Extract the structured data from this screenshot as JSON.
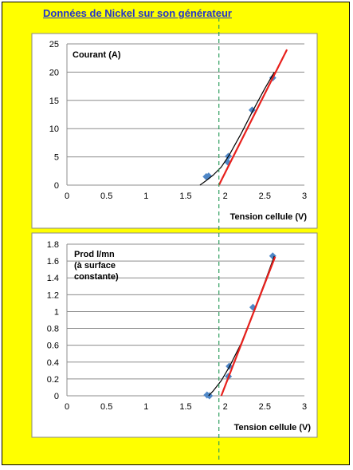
{
  "title": "Données de Nickel sur son générateur",
  "chart_data": [
    {
      "type": "scatter",
      "ylabel": "Courant  (A)",
      "xlabel": "Tension cellule (V)",
      "xlim": [
        0,
        3
      ],
      "ylim": [
        0,
        25
      ],
      "xticks": [
        "0",
        "0.5",
        "1",
        "1.5",
        "2",
        "2.5",
        "3"
      ],
      "yticks": [
        "0",
        "5",
        "10",
        "15",
        "20",
        "25"
      ],
      "grid": "horizontal",
      "series": [
        {
          "kind": "points",
          "marker": "diamond",
          "color": "#4f87c7",
          "x": [
            1.76,
            1.79,
            2.03,
            2.04,
            2.34,
            2.6
          ],
          "y": [
            1.5,
            1.6,
            4.1,
            5.1,
            13.3,
            19.0
          ]
        },
        {
          "kind": "trend-curve",
          "color": "#000000",
          "x": [
            1.68,
            1.75,
            1.85,
            1.95,
            2.05,
            2.2,
            2.35,
            2.5,
            2.62
          ],
          "y": [
            0.0,
            0.7,
            1.8,
            3.2,
            5.3,
            9.1,
            13.2,
            17.1,
            20.0
          ]
        },
        {
          "kind": "fit-line",
          "color": "#e8201c",
          "x": [
            1.92,
            2.78
          ],
          "y": [
            0.0,
            24.0
          ]
        }
      ],
      "reference_line": {
        "x": 1.92,
        "color": "#2e9e5e",
        "style": "dashed"
      }
    },
    {
      "type": "scatter",
      "ylabel_lines": [
        "Prod l/mn",
        "(à surface",
        "constante)"
      ],
      "xlabel": "Tension cellule (V)",
      "xlim": [
        0,
        3
      ],
      "ylim": [
        0,
        1.8
      ],
      "xticks": [
        "0",
        "0.5",
        "1",
        "1.5",
        "2",
        "2.5",
        "3"
      ],
      "yticks": [
        "0",
        "0.2",
        "0.4",
        "0.6",
        "0.8",
        "1",
        "1.2",
        "1.4",
        "1.6",
        "1.8"
      ],
      "grid": "horizontal",
      "series": [
        {
          "kind": "points",
          "marker": "diamond",
          "color": "#4f87c7",
          "x": [
            1.77,
            1.8,
            2.04,
            2.05,
            2.35,
            2.6
          ],
          "y": [
            0.01,
            0.0,
            0.23,
            0.35,
            1.05,
            1.66
          ]
        },
        {
          "kind": "trend-curve",
          "color": "#000000",
          "x": [
            1.79,
            1.85,
            1.95,
            2.05,
            2.2,
            2.35,
            2.5,
            2.62
          ],
          "y": [
            0.0,
            0.06,
            0.18,
            0.34,
            0.62,
            0.98,
            1.35,
            1.66
          ]
        },
        {
          "kind": "fit-line",
          "color": "#e8201c",
          "x": [
            1.95,
            2.63
          ],
          "y": [
            0.0,
            1.65
          ]
        }
      ],
      "reference_line": {
        "x": 1.92,
        "color": "#2e9e5e",
        "style": "dashed"
      }
    }
  ]
}
